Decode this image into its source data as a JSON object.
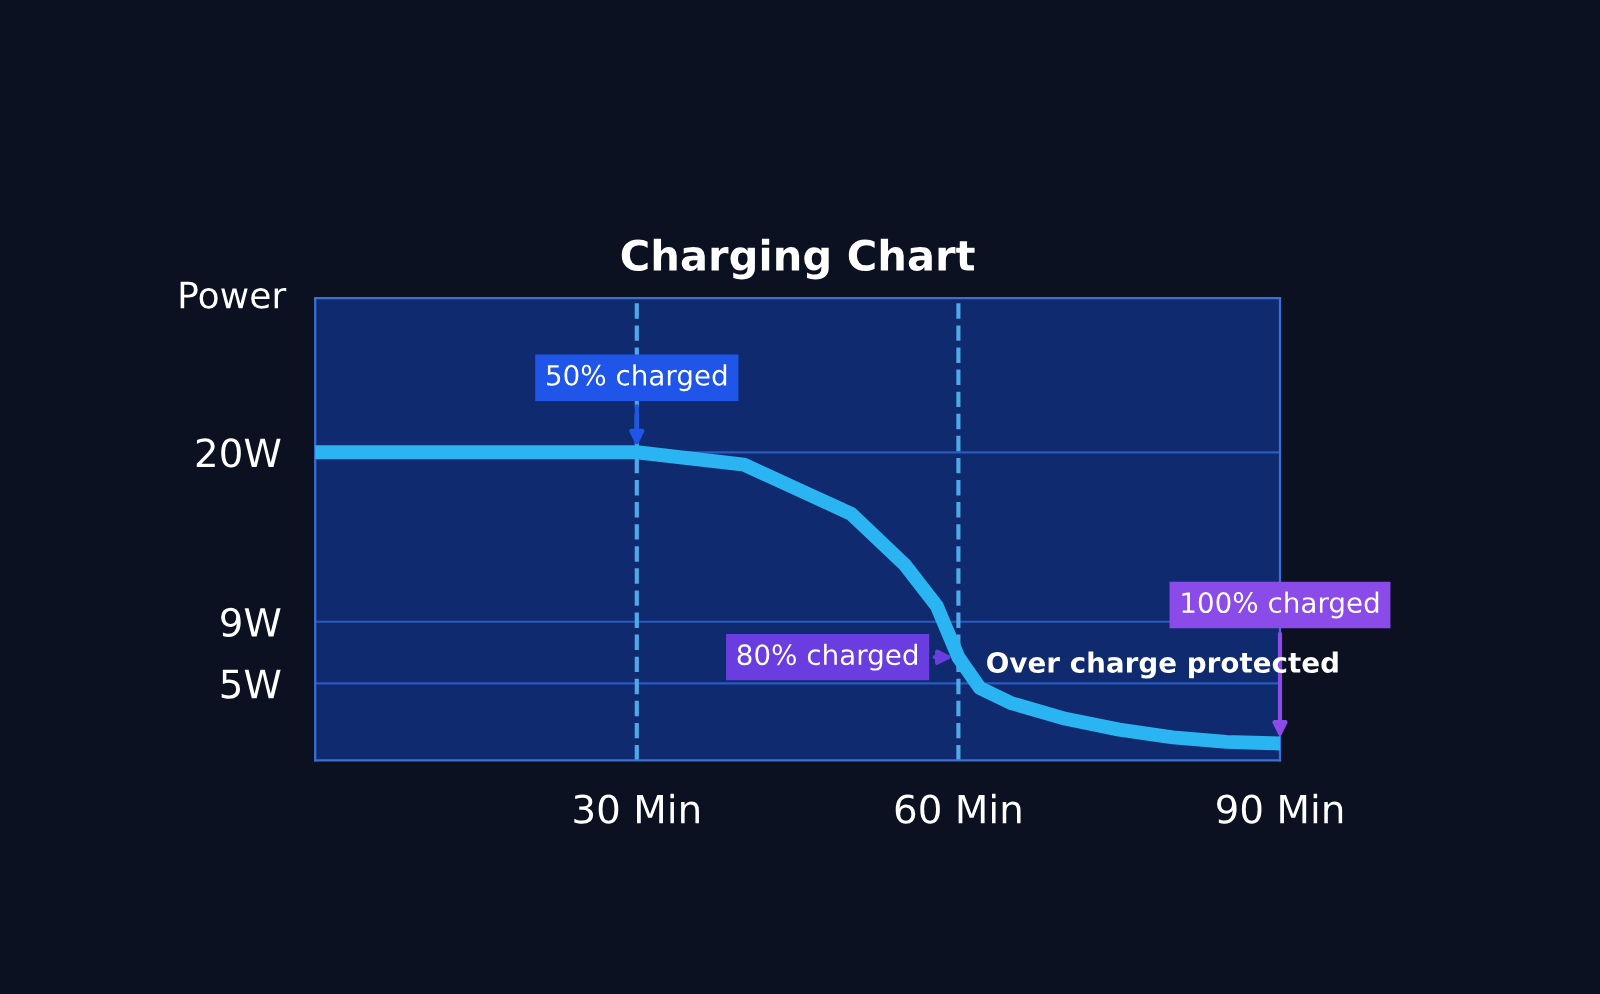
{
  "chart_data": {
    "type": "line",
    "title": "Charging Chart",
    "ylabel": "Power",
    "x": [
      0,
      30,
      40,
      45,
      50,
      55,
      58,
      60,
      62,
      65,
      70,
      75,
      80,
      85,
      90
    ],
    "series": [
      {
        "color": "#2ab4f2",
        "values": [
          20,
          20,
          19.2,
          17.6,
          16,
          12.7,
          10,
          6.7,
          4.7,
          3.7,
          2.7,
          2,
          1.5,
          1.2,
          1.1
        ]
      }
    ],
    "xlim": [
      0,
      90
    ],
    "ylim": [
      0,
      30
    ],
    "xticks": [
      {
        "value": 30,
        "label": "30 Min"
      },
      {
        "value": 60,
        "label": "60 Min"
      },
      {
        "value": 90,
        "label": "90 Min"
      }
    ],
    "yticks": [
      {
        "value": 5,
        "label": "5W"
      },
      {
        "value": 9,
        "label": "9W"
      },
      {
        "value": 20,
        "label": "20W"
      }
    ],
    "ref_lines": [
      {
        "axis": "x",
        "value": 30,
        "color": "#4fa8e8",
        "line_style": "dashed"
      },
      {
        "axis": "x",
        "value": 60,
        "color": "#4fa8e8",
        "line_style": "dashed"
      }
    ],
    "annotations": [
      {
        "text": "50% charged",
        "x": 30,
        "y": 20
      },
      {
        "text": "80% charged",
        "x": 60,
        "y": 6.7
      },
      {
        "text": "100% charged",
        "x": 90,
        "y": 1.1
      },
      "Over charge protected"
    ],
    "grid": "y",
    "marker": "none",
    "line_style": "solid"
  }
}
